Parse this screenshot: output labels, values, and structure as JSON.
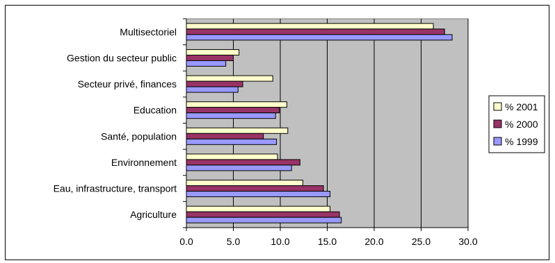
{
  "chart_data": {
    "type": "bar",
    "orientation": "horizontal",
    "categories": [
      "Multisectoriel",
      "Gestion du secteur public",
      "Secteur privé, finances",
      "Education",
      "Santé, population",
      "Environnement",
      "Eau, infrastructure, transport",
      "Agriculture"
    ],
    "series": [
      {
        "name": "% 2001",
        "color": "#ffffcc",
        "values": [
          26.3,
          5.6,
          9.2,
          10.7,
          10.8,
          9.7,
          12.4,
          15.3
        ]
      },
      {
        "name": "% 2000",
        "color": "#993366",
        "values": [
          27.5,
          5.0,
          6.0,
          9.9,
          8.2,
          12.1,
          14.6,
          16.3
        ]
      },
      {
        "name": "% 1999",
        "color": "#9999ff",
        "values": [
          28.3,
          4.2,
          5.5,
          9.5,
          9.6,
          11.2,
          15.3,
          16.5
        ]
      }
    ],
    "xlim": [
      0,
      30
    ],
    "xticks": [
      "0.0",
      "5.0",
      "10.0",
      "15.0",
      "20.0",
      "25.0",
      "30.0"
    ],
    "grid": true,
    "legend": "right",
    "title": "",
    "xlabel": "",
    "ylabel": ""
  }
}
